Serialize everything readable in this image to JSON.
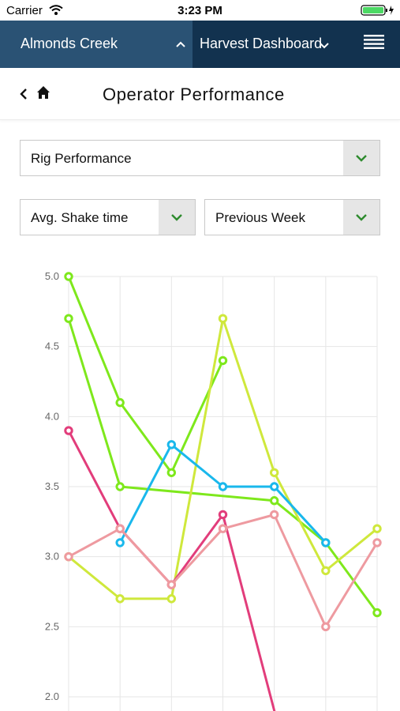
{
  "status_bar": {
    "carrier": "Carrier",
    "time": "3:23 PM"
  },
  "nav": {
    "farm": "Almonds Creek",
    "dashboard": "Harvest Dashboard"
  },
  "page": {
    "title": "Operator Performance"
  },
  "filters": {
    "report": "Rig Performance",
    "metric": "Avg. Shake time",
    "period": "Previous Week"
  },
  "colors": {
    "nav_background": "#12324f",
    "nav_farm_background": "#2a5274",
    "chevron": "#2e8b2e"
  },
  "chart_data": {
    "type": "line",
    "x": [
      0,
      1,
      2,
      3,
      4,
      5,
      6
    ],
    "ylim": [
      2.0,
      5.0
    ],
    "yticks": [
      "5.0",
      "4.5",
      "4.0",
      "3.5",
      "3.0",
      "2.5",
      "2.0"
    ],
    "grid": true,
    "series": [
      {
        "color": "#7ee81c",
        "values": [
          5.0,
          4.1,
          3.6,
          4.4,
          null,
          null,
          null
        ]
      },
      {
        "color": "#7ee81c",
        "values": [
          4.7,
          3.5,
          null,
          null,
          3.4,
          3.1,
          2.6
        ]
      },
      {
        "color": "#cfe83c",
        "values": [
          3.0,
          2.7,
          2.7,
          4.7,
          3.6,
          2.9,
          3.2
        ]
      },
      {
        "color": "#1ab8ec",
        "values": [
          null,
          3.1,
          3.8,
          3.5,
          3.5,
          3.1,
          null
        ]
      },
      {
        "color": "#e23d7b",
        "values": [
          3.9,
          3.2,
          2.8,
          3.3,
          1.9,
          null,
          null
        ]
      },
      {
        "color": "#ee9aa0",
        "values": [
          3.0,
          3.2,
          2.8,
          3.2,
          3.3,
          2.5,
          3.1
        ]
      }
    ]
  }
}
